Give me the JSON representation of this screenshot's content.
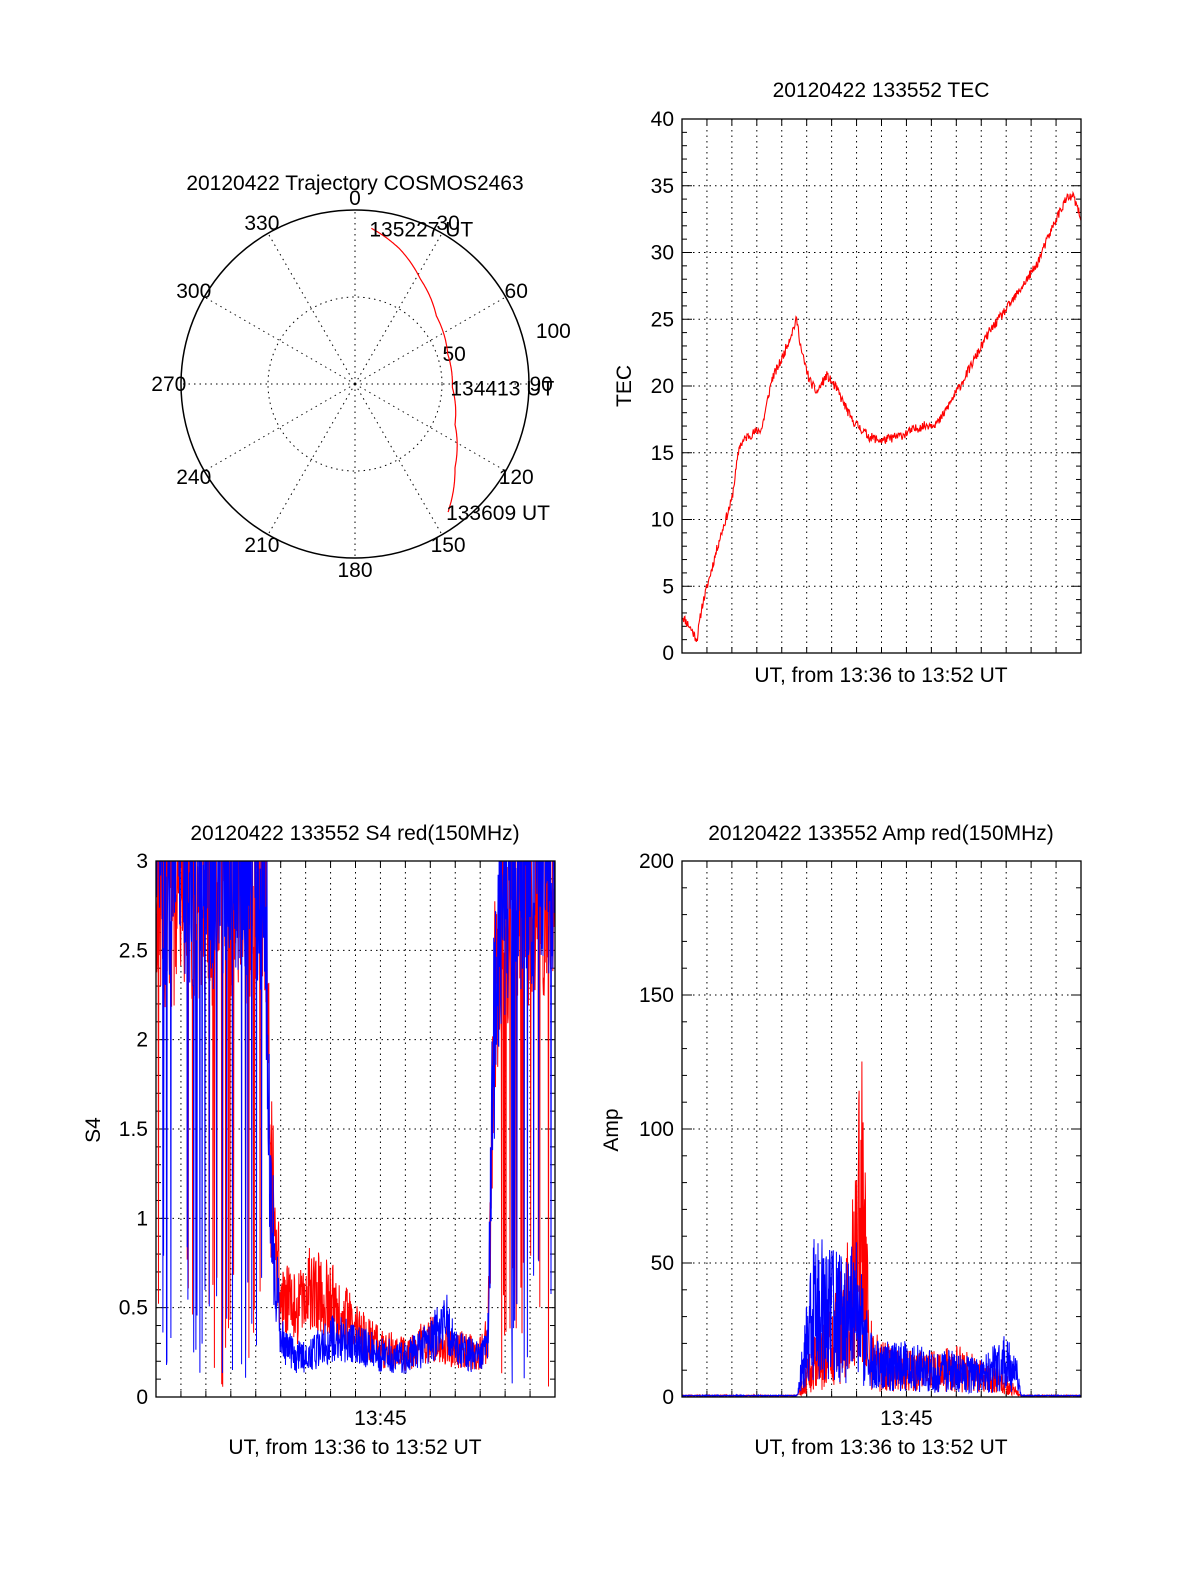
{
  "colors": {
    "red": "#ff0000",
    "blue": "#0000ff",
    "axis": "#000000",
    "background": "#ffffff"
  },
  "chart_data": [
    {
      "id": "trajectory",
      "type": "polar",
      "title": "20120422 Trajectory COSMOS2463",
      "angle_labels": [
        "0",
        "30",
        "60",
        "90",
        "120",
        "150",
        "180",
        "210",
        "240",
        "270",
        "300",
        "330"
      ],
      "radial_labels": [
        "50",
        "100"
      ],
      "rlim": [
        0,
        100
      ],
      "grid": true,
      "series": [
        {
          "color": "red",
          "points": [
            {
              "az": 6,
              "zen": 90
            },
            {
              "az": 18,
              "zen": 82
            },
            {
              "az": 32,
              "zen": 71
            },
            {
              "az": 50,
              "zen": 61
            },
            {
              "az": 72,
              "zen": 56
            },
            {
              "az": 92,
              "zen": 56
            },
            {
              "az": 112,
              "zen": 62
            },
            {
              "az": 130,
              "zen": 75
            },
            {
              "az": 144,
              "zen": 91
            }
          ]
        }
      ],
      "annotations": [
        {
          "text": "135227 UT",
          "az": 6,
          "zen": 90
        },
        {
          "text": "134413 UT",
          "az": 92,
          "zen": 56
        },
        {
          "text": "133609 UT",
          "az": 144,
          "zen": 91
        }
      ]
    },
    {
      "id": "tec",
      "type": "line",
      "title": "20120422 133552 TEC",
      "xlabel": "UT, from 13:36 to 13:52 UT",
      "ylabel": "TEC",
      "xlim": [
        0,
        16
      ],
      "ylim": [
        0,
        40
      ],
      "yticks": [
        0,
        5,
        10,
        15,
        20,
        25,
        30,
        35,
        40
      ],
      "xticks": [],
      "grid": true,
      "series": [
        {
          "color": "red",
          "noise": 0.35,
          "x": [
            0,
            0.3,
            0.6,
            0.8,
            1.5,
            2.0,
            2.3,
            2.6,
            3.2,
            3.6,
            4.0,
            4.6,
            4.8,
            5.1,
            5.4,
            5.8,
            6.2,
            6.8,
            7.5,
            8.0,
            8.8,
            9.5,
            10.3,
            11.3,
            12.3,
            13.3,
            14.2,
            15.0,
            15.4,
            15.7,
            16.0
          ],
          "y": [
            2.8,
            2.0,
            1.0,
            3.5,
            8.5,
            11.5,
            15.5,
            16.2,
            16.8,
            20.5,
            22.0,
            25.0,
            22.5,
            20.5,
            19.5,
            20.8,
            19.8,
            17.5,
            16.2,
            15.9,
            16.3,
            16.9,
            17.3,
            20.5,
            24.0,
            26.5,
            29.0,
            32.5,
            34.0,
            34.2,
            32.5
          ]
        }
      ]
    },
    {
      "id": "s4",
      "type": "line",
      "title": "20120422 133552 S4 red(150MHz)",
      "xlabel": "UT, from 13:36 to 13:52 UT",
      "ylabel": "S4",
      "xlim": [
        0,
        16
      ],
      "ylim": [
        0,
        3
      ],
      "yticks": [
        0,
        0.5,
        1,
        1.5,
        2,
        2.5,
        3
      ],
      "xticks": [
        {
          "value": 9,
          "label": "13:45"
        }
      ],
      "grid": true,
      "series": [
        {
          "color": "red",
          "x": [
            0,
            4.4,
            4.6,
            5.0,
            5.6,
            6.2,
            7.0,
            8.0,
            9.0,
            10.0,
            11.0,
            12.0,
            13.0,
            13.3,
            13.6,
            14.2,
            16.0
          ],
          "y": [
            2.6,
            2.6,
            1.2,
            0.5,
            0.45,
            0.55,
            0.5,
            0.35,
            0.25,
            0.22,
            0.3,
            0.25,
            0.22,
            0.3,
            2.0,
            2.6,
            2.6
          ]
        },
        {
          "color": "blue",
          "x": [
            0,
            4.4,
            4.6,
            5.0,
            5.6,
            6.2,
            7.0,
            8.0,
            9.0,
            10.0,
            11.0,
            11.6,
            12.0,
            13.0,
            13.3,
            13.6,
            14.2,
            16.0
          ],
          "y": [
            2.7,
            2.7,
            1.0,
            0.3,
            0.2,
            0.22,
            0.3,
            0.28,
            0.22,
            0.2,
            0.28,
            0.4,
            0.25,
            0.2,
            0.25,
            2.2,
            2.7,
            2.7
          ]
        }
      ]
    },
    {
      "id": "amp",
      "type": "line",
      "title": "20120422 133552 Amp red(150MHz)",
      "xlabel": "UT, from 13:36 to 13:52 UT",
      "ylabel": "Amp",
      "xlim": [
        0,
        16
      ],
      "ylim": [
        0,
        200
      ],
      "yticks": [
        0,
        50,
        100,
        150,
        200
      ],
      "xticks": [
        {
          "value": 9,
          "label": "13:45"
        }
      ],
      "grid": true,
      "series": [
        {
          "color": "red",
          "x": [
            0,
            4.6,
            4.9,
            5.3,
            6.0,
            6.5,
            6.9,
            7.2,
            7.5,
            8.0,
            9.0,
            10.0,
            11.0,
            12.0,
            13.0,
            13.4,
            13.6,
            16.0
          ],
          "y": [
            0.3,
            0.3,
            5,
            15,
            20,
            30,
            45,
            80,
            18,
            12,
            10,
            10,
            12,
            8,
            5,
            2,
            0.3,
            0.3
          ]
        },
        {
          "color": "blue",
          "x": [
            0,
            4.6,
            4.9,
            5.3,
            6.0,
            6.5,
            6.9,
            7.2,
            7.5,
            8.0,
            9.0,
            10.0,
            11.0,
            12.0,
            13.0,
            13.4,
            13.6,
            16.0
          ],
          "y": [
            0.3,
            0.3,
            15,
            35,
            32,
            30,
            35,
            30,
            15,
            12,
            12,
            10,
            10,
            8,
            14,
            10,
            0.3,
            0.3
          ]
        }
      ]
    }
  ]
}
